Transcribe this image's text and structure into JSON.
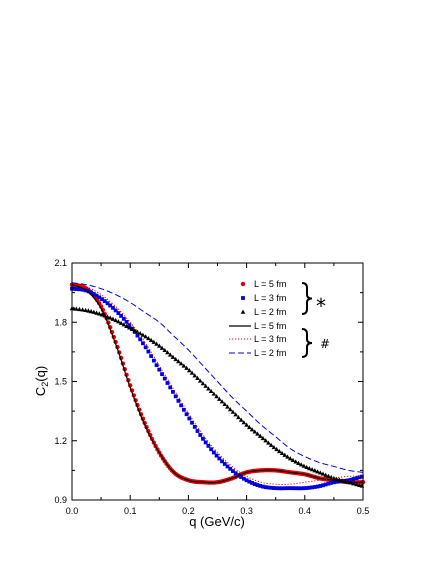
{
  "chart_data": {
    "type": "line",
    "xlabel": "q (GeV/c)",
    "ylabel_main": "C",
    "ylabel_sub": "2",
    "ylabel_tail": "(q)",
    "xlim": [
      0.0,
      0.5
    ],
    "ylim": [
      0.9,
      2.1
    ],
    "x_ticks": [
      "0.0",
      "0.1",
      "0.2",
      "0.3",
      "0.4",
      "0.5"
    ],
    "y_ticks": [
      "0.9",
      "1.2",
      "1.5",
      "1.8",
      "2.1"
    ],
    "x_tick_values": [
      0.0,
      0.1,
      0.2,
      0.3,
      0.4,
      0.5
    ],
    "y_tick_values": [
      0.9,
      1.2,
      1.5,
      1.8,
      2.1
    ],
    "grid": false,
    "legend_position": "top-right",
    "group_marks": [
      "*",
      "#"
    ],
    "series": [
      {
        "name": "L = 5 fm",
        "style": "markers",
        "marker": "circle",
        "color": "#e00000",
        "group": "*",
        "x": [
          0.0,
          0.025,
          0.05,
          0.075,
          0.1,
          0.125,
          0.15,
          0.175,
          0.2,
          0.225,
          0.25,
          0.275,
          0.3,
          0.325,
          0.35,
          0.375,
          0.4,
          0.425,
          0.45,
          0.475,
          0.5
        ],
        "y": [
          1.99,
          1.97,
          1.88,
          1.7,
          1.48,
          1.29,
          1.14,
          1.04,
          1.0,
          0.99,
          0.99,
          1.01,
          1.04,
          1.05,
          1.05,
          1.04,
          1.03,
          1.01,
          1.0,
          0.99,
          0.99
        ]
      },
      {
        "name": "L = 3 fm",
        "style": "markers",
        "marker": "square",
        "color": "#0000e0",
        "group": "*",
        "x": [
          0.0,
          0.025,
          0.05,
          0.075,
          0.1,
          0.125,
          0.15,
          0.175,
          0.2,
          0.225,
          0.25,
          0.275,
          0.3,
          0.325,
          0.35,
          0.375,
          0.4,
          0.425,
          0.45,
          0.475,
          0.5
        ],
        "y": [
          1.97,
          1.96,
          1.92,
          1.86,
          1.78,
          1.68,
          1.56,
          1.44,
          1.32,
          1.21,
          1.12,
          1.05,
          1.0,
          0.97,
          0.96,
          0.96,
          0.96,
          0.97,
          0.99,
          1.0,
          1.02
        ]
      },
      {
        "name": "L = 2 fm",
        "style": "markers",
        "marker": "triangle",
        "color": "#000000",
        "group": "*",
        "x": [
          0.0,
          0.025,
          0.05,
          0.075,
          0.1,
          0.125,
          0.15,
          0.175,
          0.2,
          0.225,
          0.25,
          0.275,
          0.3,
          0.325,
          0.35,
          0.375,
          0.4,
          0.425,
          0.45,
          0.475,
          0.5
        ],
        "y": [
          1.87,
          1.86,
          1.84,
          1.81,
          1.77,
          1.73,
          1.68,
          1.62,
          1.56,
          1.49,
          1.42,
          1.35,
          1.28,
          1.22,
          1.16,
          1.11,
          1.07,
          1.04,
          1.01,
          0.99,
          0.97
        ]
      },
      {
        "name": "L = 5 fm",
        "style": "solid",
        "color": "#000000",
        "group": "#",
        "x": [
          0.0,
          0.025,
          0.05,
          0.075,
          0.1,
          0.125,
          0.15,
          0.175,
          0.2,
          0.225,
          0.25,
          0.275,
          0.3,
          0.325,
          0.35,
          0.375,
          0.4,
          0.425,
          0.45,
          0.475,
          0.5
        ],
        "y": [
          1.99,
          1.96,
          1.87,
          1.69,
          1.47,
          1.28,
          1.14,
          1.04,
          1.0,
          0.99,
          0.99,
          1.01,
          1.04,
          1.05,
          1.05,
          1.04,
          1.03,
          1.01,
          1.0,
          0.99,
          0.99
        ]
      },
      {
        "name": "L = 3 fm",
        "style": "dotted",
        "color": "#e00000",
        "group": "#",
        "x": [
          0.0,
          0.025,
          0.05,
          0.075,
          0.1,
          0.125,
          0.15,
          0.175,
          0.2,
          0.225,
          0.25,
          0.275,
          0.3,
          0.325,
          0.35,
          0.375,
          0.4,
          0.425,
          0.45,
          0.475,
          0.5
        ],
        "y": [
          2.0,
          1.98,
          1.94,
          1.88,
          1.8,
          1.7,
          1.58,
          1.46,
          1.34,
          1.23,
          1.14,
          1.07,
          1.02,
          0.99,
          0.98,
          0.98,
          0.99,
          1.0,
          1.01,
          1.02,
          1.02
        ]
      },
      {
        "name": "L = 2 fm",
        "style": "dashed",
        "color": "#0000e0",
        "group": "#",
        "x": [
          0.0,
          0.025,
          0.05,
          0.075,
          0.1,
          0.125,
          0.15,
          0.175,
          0.2,
          0.225,
          0.25,
          0.275,
          0.3,
          0.325,
          0.35,
          0.375,
          0.4,
          0.425,
          0.45,
          0.475,
          0.5
        ],
        "y": [
          2.0,
          1.99,
          1.97,
          1.94,
          1.9,
          1.85,
          1.8,
          1.73,
          1.66,
          1.58,
          1.5,
          1.42,
          1.35,
          1.28,
          1.22,
          1.16,
          1.12,
          1.09,
          1.07,
          1.05,
          1.04
        ]
      }
    ]
  }
}
